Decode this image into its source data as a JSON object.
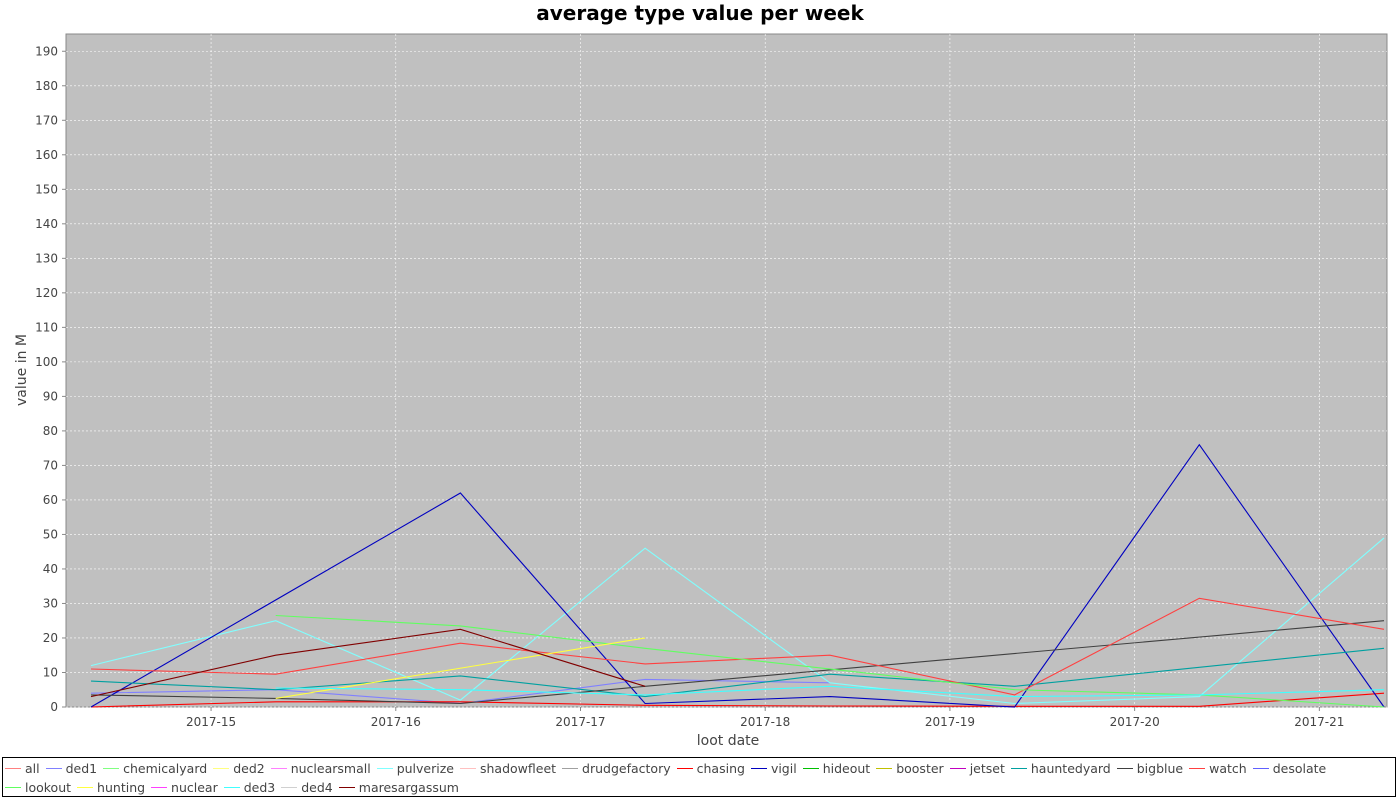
{
  "chart_data": {
    "type": "line",
    "title": "average type value per week",
    "xlabel": "loot date",
    "ylabel": "value in M",
    "categories": [
      "2017-15",
      "2017-16",
      "2017-17",
      "2017-18",
      "2017-19",
      "2017-20",
      "2017-21"
    ],
    "ylim": [
      0,
      195
    ],
    "yticks": [
      0,
      10,
      20,
      30,
      40,
      50,
      60,
      70,
      80,
      90,
      100,
      110,
      120,
      130,
      140,
      150,
      160,
      170,
      180,
      190
    ],
    "grid": true,
    "legend_position": "bottom",
    "plot_background": "#c0c0c0",
    "series": [
      {
        "name": "all",
        "color": "#ff8080",
        "x": [],
        "y": []
      },
      {
        "name": "ded1",
        "color": "#8080ff",
        "x": [
          14.35,
          15.35,
          16.35,
          17.35,
          18.35
        ],
        "y": [
          4,
          5,
          1,
          8,
          7
        ]
      },
      {
        "name": "chemicalyard",
        "color": "#80ff80",
        "x": [],
        "y": []
      },
      {
        "name": "ded2",
        "color": "#ffff80",
        "x": [],
        "y": []
      },
      {
        "name": "nuclearsmall",
        "color": "#ff80ff",
        "x": [],
        "y": []
      },
      {
        "name": "pulverize",
        "color": "#80ffff",
        "x": [
          14.35,
          15.35,
          16.35,
          17.35,
          18.35,
          19.35,
          20.35,
          21.35
        ],
        "y": [
          12,
          25,
          2,
          46,
          7,
          1,
          3,
          49
        ]
      },
      {
        "name": "shadowfleet",
        "color": "#ffc0c0",
        "x": [],
        "y": []
      },
      {
        "name": "drudgefactory",
        "color": "#a0a0a0",
        "x": [],
        "y": []
      },
      {
        "name": "chasing",
        "color": "#ff0000",
        "x": [
          14.35,
          15.35,
          16.35,
          17.35,
          18.35,
          19.35,
          20.35,
          21.35
        ],
        "y": [
          0,
          1.5,
          1.5,
          0.5,
          0.3,
          0.2,
          0.2,
          4
        ]
      },
      {
        "name": "vigil",
        "color": "#0000c0",
        "x": [
          14.35,
          16.35,
          17.35,
          18.35,
          19.35,
          20.35,
          21.35
        ],
        "y": [
          0,
          62,
          1,
          3,
          0,
          76,
          0
        ]
      },
      {
        "name": "hideout",
        "color": "#00c000",
        "x": [],
        "y": []
      },
      {
        "name": "booster",
        "color": "#c0c000",
        "x": [],
        "y": []
      },
      {
        "name": "jetset",
        "color": "#c000c0",
        "x": [],
        "y": []
      },
      {
        "name": "hauntedyard",
        "color": "#00a0a0",
        "x": [
          14.35,
          15.35,
          16.35,
          17.35,
          18.35,
          19.35,
          20.35,
          21.35
        ],
        "y": [
          7.5,
          5,
          9,
          3,
          9.5,
          6,
          11.5,
          17
        ]
      },
      {
        "name": "bigblue",
        "color": "#404040",
        "x": [
          14.35,
          15.35,
          16.35,
          17.35,
          21.35
        ],
        "y": [
          3.5,
          2.5,
          1,
          6,
          25
        ]
      },
      {
        "name": "watch",
        "color": "#ff4040",
        "x": [
          14.35,
          15.35,
          16.35,
          17.35,
          18.35,
          19.35,
          20.35,
          21.35
        ],
        "y": [
          11,
          9.5,
          18.5,
          12.5,
          15,
          3.5,
          31.5,
          22.5
        ]
      },
      {
        "name": "desolate",
        "color": "#6060ff",
        "x": [],
        "y": []
      },
      {
        "name": "lookout",
        "color": "#60ff60",
        "x": [
          15.35,
          16.35,
          17.35,
          19.35,
          20.35,
          21.35
        ],
        "y": [
          26.5,
          23.5,
          17,
          5,
          3.5,
          0
        ]
      },
      {
        "name": "hunting",
        "color": "#ffff40",
        "x": [
          15.35,
          17.35
        ],
        "y": [
          2.5,
          20
        ]
      },
      {
        "name": "nuclear",
        "color": "#ff40ff",
        "x": [],
        "y": []
      },
      {
        "name": "ded3",
        "color": "#40ffff",
        "x": [
          15.35,
          16.35,
          17.35,
          18.35,
          19.35,
          20.35,
          21.35
        ],
        "y": [
          5.5,
          5,
          3.5,
          6,
          3,
          3.5,
          5
        ]
      },
      {
        "name": "ded4",
        "color": "#d0d0d0",
        "x": [],
        "y": []
      },
      {
        "name": "maresargassum",
        "color": "#800000",
        "x": [
          14.35,
          15.35,
          16.35,
          17.35
        ],
        "y": [
          3,
          15,
          22.5,
          6
        ]
      }
    ]
  }
}
